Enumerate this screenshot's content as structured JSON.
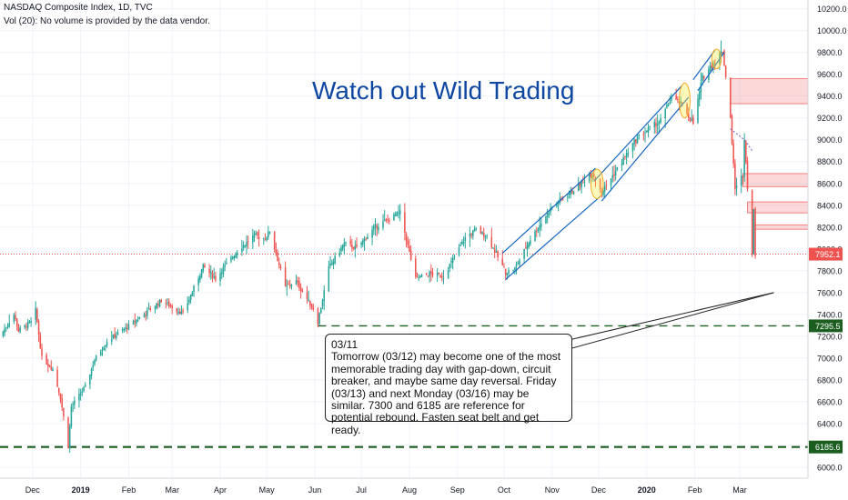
{
  "header": {
    "title": "NASDAQ Composite Index, 1D, TVC",
    "volume_note": "Vol (20): No volume is provided by the data vendor."
  },
  "headline": "Watch out Wild Trading",
  "note": {
    "date": "03/11",
    "text": "Tomorrow (03/12) may become one of the most memorable trading day with gap-down, circuit breaker, and maybe same day reversal. Friday (03/13) and next Monday (03/16) may be similar. 7300 and 6185 are reference for potential rebound. Fasten seat belt and get ready."
  },
  "colors": {
    "up": "#26a69a",
    "down": "#ef5350",
    "support": "#1b5e20",
    "channel": "#1565c0",
    "price_line": "#ef5350",
    "headline": "#0d47a1"
  },
  "chart_data": {
    "type": "candlestick",
    "y_axis": {
      "ticks": [
        6000.0,
        6200.0,
        6400.0,
        6600.0,
        6800.0,
        7000.0,
        7200.0,
        7400.0,
        7600.0,
        7800.0,
        8000.0,
        8200.0,
        8400.0,
        8600.0,
        8800.0,
        9000.0,
        9200.0,
        9400.0,
        9600.0,
        9800.0,
        10000.0,
        10200.0
      ],
      "ylim": [
        5900,
        10280
      ],
      "position": "right"
    },
    "x_axis": {
      "ticks": [
        "Dec",
        "2019",
        "Feb",
        "Mar",
        "Apr",
        "May",
        "Jun",
        "Jul",
        "Aug",
        "Sep",
        "Oct",
        "Nov",
        "Dec",
        "2020",
        "Feb",
        "Mar"
      ],
      "bold_ticks": [
        "2019",
        "2020"
      ],
      "range": [
        "2018-11-10",
        "2020-04-14"
      ]
    },
    "price_labels": {
      "last": "7952.1",
      "support_1": "7295.5",
      "support_2": "6185.6"
    },
    "levels": [
      {
        "name": "last-price",
        "value": 7952.1
      },
      {
        "name": "support-1",
        "value": 7295.5,
        "from": "2019-06-03"
      },
      {
        "name": "support-2",
        "value": 6185.6,
        "from": "2018-11-10"
      }
    ],
    "path": [
      [
        "2018-11-10",
        7200
      ],
      [
        "2018-11-19",
        7400
      ],
      [
        "2018-11-22",
        7250
      ],
      [
        "2018-11-30",
        7330
      ],
      [
        "2018-12-03",
        7440
      ],
      [
        "2018-12-07",
        7000
      ],
      [
        "2018-12-14",
        6900
      ],
      [
        "2018-12-19",
        6640
      ],
      [
        "2018-12-24",
        6190
      ],
      [
        "2018-12-26",
        6555
      ],
      [
        "2019-01-04",
        6738
      ],
      [
        "2019-01-10",
        6986
      ],
      [
        "2019-01-18",
        7157
      ],
      [
        "2019-01-31",
        7282
      ],
      [
        "2019-02-12",
        7414
      ],
      [
        "2019-02-22",
        7527
      ],
      [
        "2019-03-08",
        7408
      ],
      [
        "2019-03-21",
        7838
      ],
      [
        "2019-03-29",
        7729
      ],
      [
        "2019-04-12",
        7984
      ],
      [
        "2019-04-23",
        8120
      ],
      [
        "2019-04-30",
        8095
      ],
      [
        "2019-05-03",
        8164
      ],
      [
        "2019-05-13",
        7647
      ],
      [
        "2019-05-20",
        7702
      ],
      [
        "2019-05-31",
        7453
      ],
      [
        "2019-06-03",
        7333
      ],
      [
        "2019-06-10",
        7823
      ],
      [
        "2019-06-20",
        8051
      ],
      [
        "2019-06-28",
        8006
      ],
      [
        "2019-07-10",
        8202
      ],
      [
        "2019-07-26",
        8330
      ],
      [
        "2019-08-05",
        7726
      ],
      [
        "2019-08-14",
        7773
      ],
      [
        "2019-08-23",
        7751
      ],
      [
        "2019-09-06",
        8103
      ],
      [
        "2019-09-13",
        8176
      ],
      [
        "2019-09-20",
        8117
      ],
      [
        "2019-10-02",
        7785
      ],
      [
        "2019-10-08",
        7823
      ],
      [
        "2019-10-18",
        8089
      ],
      [
        "2019-11-01",
        8386
      ],
      [
        "2019-11-15",
        8540
      ],
      [
        "2019-11-27",
        8705
      ],
      [
        "2019-12-03",
        8520
      ],
      [
        "2019-12-13",
        8734
      ],
      [
        "2019-12-26",
        9022
      ],
      [
        "2020-01-10",
        9178
      ],
      [
        "2020-01-17",
        9388
      ],
      [
        "2020-01-24",
        9314
      ],
      [
        "2020-01-31",
        9150
      ],
      [
        "2020-02-06",
        9572
      ],
      [
        "2020-02-19",
        9817
      ],
      [
        "2020-02-21",
        9576
      ],
      [
        "2020-02-24",
        9221
      ],
      [
        "2020-02-25",
        8965
      ],
      [
        "2020-02-27",
        8566
      ],
      [
        "2020-02-28",
        8567
      ],
      [
        "2020-03-03",
        8684
      ],
      [
        "2020-03-04",
        9018
      ],
      [
        "2020-03-06",
        8575
      ],
      [
        "2020-03-09",
        7950
      ],
      [
        "2020-03-10",
        8344
      ],
      [
        "2020-03-11",
        7952
      ]
    ],
    "channels": [
      {
        "start": [
          "2019-10-02",
          7720
        ],
        "end": [
          "2019-12-02",
          8480
        ]
      },
      {
        "start": [
          "2019-09-30",
          7960
        ],
        "end": [
          "2019-11-29",
          8740
        ]
      },
      {
        "start": [
          "2019-12-03",
          8440
        ],
        "end": [
          "2020-01-28",
          9390
        ]
      },
      {
        "start": [
          "2019-11-28",
          8620
        ],
        "end": [
          "2020-01-24",
          9500
        ]
      },
      {
        "start": [
          "2020-02-03",
          9450
        ],
        "end": [
          "2020-02-20",
          9800
        ]
      },
      {
        "start": [
          "2020-01-31",
          9550
        ],
        "end": [
          "2020-02-14",
          9820
        ]
      }
    ],
    "highlights": [
      {
        "start": [
          "2019-11-26",
          8460
        ],
        "end": [
          "2019-12-04",
          8730
        ]
      },
      {
        "start": [
          "2020-01-22",
          9200
        ],
        "end": [
          "2020-01-29",
          9520
        ]
      },
      {
        "start": [
          "2020-02-12",
          9650
        ],
        "end": [
          "2020-02-18",
          9830
        ]
      }
    ],
    "zones": [
      {
        "x_from": "2020-02-24",
        "x_to": "2020-04-14",
        "y_low": 9330,
        "y_high": 9560
      },
      {
        "x_from": "2020-03-03",
        "x_to": "2020-04-14",
        "y_low": 8570,
        "y_high": 8690
      },
      {
        "x_from": "2020-03-06",
        "x_to": "2020-04-14",
        "y_low": 8330,
        "y_high": 8430
      },
      {
        "x_from": "2020-03-10",
        "x_to": "2020-04-14",
        "y_low": 8180,
        "y_high": 8220
      }
    ],
    "callout_target": [
      "2020-03-23",
      7600
    ]
  }
}
